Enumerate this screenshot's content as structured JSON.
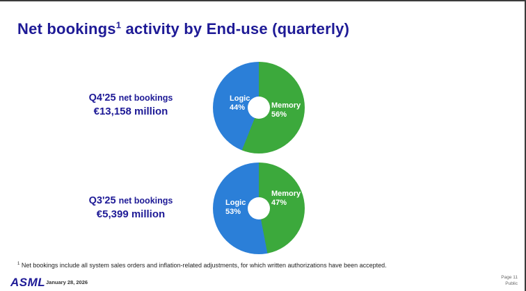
{
  "slide": {
    "title": {
      "pre": "Net bookings",
      "sup": "1",
      "post": " activity by End-use (quarterly)"
    },
    "footnote": {
      "sup": "1",
      "text": " Net bookings include all system sales orders and inflation-related adjustments, for which written authorizations have been accepted."
    },
    "footer": {
      "logo": "ASML",
      "date": "January 28, 2026",
      "page": "Page 11",
      "classification": "Public"
    }
  },
  "quarters": [
    {
      "label": "Q4'25",
      "label_suffix": "net bookings",
      "amount": "€13,158 million",
      "logic_label": "Logic",
      "logic_pct": "44%",
      "memory_label": "Memory",
      "memory_pct": "56%"
    },
    {
      "label": "Q3'25",
      "label_suffix": "net bookings",
      "amount": "€5,399 million",
      "logic_label": "Logic",
      "logic_pct": "53%",
      "memory_label": "Memory",
      "memory_pct": "47%"
    }
  ],
  "colors": {
    "memory_green": "#3CA93C",
    "logic_blue": "#2B7FD8",
    "title_navy": "#1E1A96"
  },
  "chart_data": [
    {
      "type": "pie",
      "donut": true,
      "title": "Q4'25 net bookings €13,158 million",
      "categories": [
        "Memory",
        "Logic"
      ],
      "values": [
        56,
        44
      ],
      "unit": "%",
      "colors": [
        "#3CA93C",
        "#2B7FD8"
      ],
      "start_angle_deg": 0,
      "direction": "clockwise",
      "legend": "labels-inside"
    },
    {
      "type": "pie",
      "donut": true,
      "title": "Q3'25 net bookings €5,399 million",
      "categories": [
        "Memory",
        "Logic"
      ],
      "values": [
        47,
        53
      ],
      "unit": "%",
      "colors": [
        "#3CA93C",
        "#2B7FD8"
      ],
      "start_angle_deg": 0,
      "direction": "clockwise",
      "legend": "labels-inside"
    }
  ]
}
